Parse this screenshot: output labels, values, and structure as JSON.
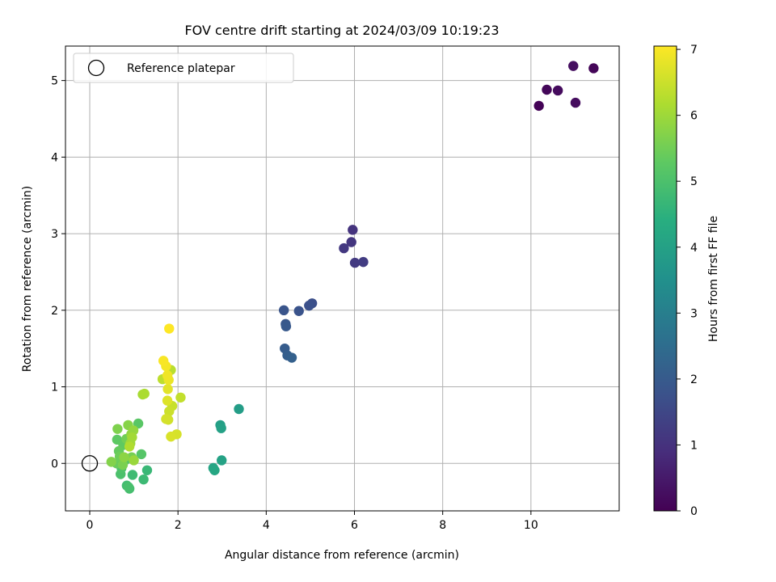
{
  "chart_data": {
    "type": "scatter",
    "title": "FOV centre drift starting at 2024/03/09 10:19:23",
    "xlabel": "Angular distance from reference (arcmin)",
    "ylabel": "Rotation from reference (arcmin)",
    "xlim": [
      -0.55,
      12.0
    ],
    "ylim": [
      -0.62,
      5.45
    ],
    "xticks": [
      "0",
      "2",
      "4",
      "6",
      "8",
      "10"
    ],
    "xtick_values": [
      0,
      2,
      4,
      6,
      8,
      10
    ],
    "yticks": [
      "0",
      "1",
      "2",
      "3",
      "4",
      "5"
    ],
    "ytick_values": [
      0,
      1,
      2,
      3,
      4,
      5
    ],
    "grid": true,
    "legend": {
      "placement": "upper-left",
      "entries": [
        {
          "label": "Reference platepar",
          "marker": "open-circle",
          "x": 0,
          "y": 0
        }
      ]
    },
    "colorbar": {
      "label": "Hours from first FF file",
      "colormap": "viridis",
      "range": [
        0,
        7.05
      ],
      "ticks": [
        "0",
        "1",
        "2",
        "3",
        "4",
        "5",
        "6",
        "7"
      ],
      "tick_values": [
        0,
        1,
        2,
        3,
        4,
        5,
        6,
        7
      ]
    },
    "series": [
      {
        "points": [
          {
            "x": 10.18,
            "y": 4.67,
            "hours": 0.05
          },
          {
            "x": 10.36,
            "y": 4.88,
            "hours": 0.12
          },
          {
            "x": 10.61,
            "y": 4.87,
            "hours": 0.2
          },
          {
            "x": 10.96,
            "y": 5.19,
            "hours": 0.28
          },
          {
            "x": 11.01,
            "y": 4.71,
            "hours": 0.22
          },
          {
            "x": 11.42,
            "y": 5.16,
            "hours": 0.1
          },
          {
            "x": 5.96,
            "y": 3.05,
            "hours": 1.05
          },
          {
            "x": 5.93,
            "y": 2.89,
            "hours": 1.1
          },
          {
            "x": 5.76,
            "y": 2.81,
            "hours": 1.15
          },
          {
            "x": 6.01,
            "y": 2.62,
            "hours": 1.2
          },
          {
            "x": 6.2,
            "y": 2.63,
            "hours": 1.25
          },
          {
            "x": 5.04,
            "y": 2.09,
            "hours": 1.7
          },
          {
            "x": 4.97,
            "y": 2.06,
            "hours": 1.75
          },
          {
            "x": 4.74,
            "y": 1.99,
            "hours": 1.8
          },
          {
            "x": 4.4,
            "y": 2.0,
            "hours": 1.85
          },
          {
            "x": 4.44,
            "y": 1.82,
            "hours": 1.9
          },
          {
            "x": 4.45,
            "y": 1.79,
            "hours": 1.95
          },
          {
            "x": 4.42,
            "y": 1.5,
            "hours": 2.05
          },
          {
            "x": 4.48,
            "y": 1.41,
            "hours": 2.1
          },
          {
            "x": 4.58,
            "y": 1.38,
            "hours": 2.15
          },
          {
            "x": 3.38,
            "y": 0.71,
            "hours": 3.9
          },
          {
            "x": 2.96,
            "y": 0.5,
            "hours": 3.95
          },
          {
            "x": 2.98,
            "y": 0.46,
            "hours": 4.0
          },
          {
            "x": 2.99,
            "y": 0.04,
            "hours": 4.05
          },
          {
            "x": 2.8,
            "y": -0.06,
            "hours": 4.1
          },
          {
            "x": 2.83,
            "y": -0.09,
            "hours": 4.15
          },
          {
            "x": 1.3,
            "y": -0.09,
            "hours": 4.7
          },
          {
            "x": 1.22,
            "y": -0.21,
            "hours": 4.75
          },
          {
            "x": 0.97,
            "y": -0.15,
            "hours": 4.8
          },
          {
            "x": 0.84,
            "y": -0.29,
            "hours": 4.85
          },
          {
            "x": 0.9,
            "y": -0.33,
            "hours": 4.9
          },
          {
            "x": 0.88,
            "y": -0.31,
            "hours": 4.95
          },
          {
            "x": 0.7,
            "y": -0.14,
            "hours": 5.0
          },
          {
            "x": 0.72,
            "y": -0.06,
            "hours": 5.05
          },
          {
            "x": 0.8,
            "y": 0.04,
            "hours": 5.1
          },
          {
            "x": 1.17,
            "y": 0.12,
            "hours": 5.15
          },
          {
            "x": 1.1,
            "y": 0.52,
            "hours": 5.2
          },
          {
            "x": 0.62,
            "y": 0.31,
            "hours": 5.25
          },
          {
            "x": 0.76,
            "y": 0.24,
            "hours": 5.3
          },
          {
            "x": 0.66,
            "y": 0.16,
            "hours": 5.35
          },
          {
            "x": 0.61,
            "y": 0.0,
            "hours": 5.4
          },
          {
            "x": 0.68,
            "y": 0.09,
            "hours": 5.45
          },
          {
            "x": 0.83,
            "y": 0.32,
            "hours": 5.5
          },
          {
            "x": 0.95,
            "y": 0.08,
            "hours": 5.55
          },
          {
            "x": 0.75,
            "y": -0.02,
            "hours": 5.6
          },
          {
            "x": 0.63,
            "y": 0.45,
            "hours": 5.65
          },
          {
            "x": 0.49,
            "y": 0.02,
            "hours": 5.7
          },
          {
            "x": 0.87,
            "y": 0.5,
            "hours": 5.75
          },
          {
            "x": 0.78,
            "y": 0.08,
            "hours": 5.8
          },
          {
            "x": 0.94,
            "y": 0.38,
            "hours": 5.85
          },
          {
            "x": 0.99,
            "y": 0.43,
            "hours": 5.9
          },
          {
            "x": 1.0,
            "y": 0.04,
            "hours": 5.95
          },
          {
            "x": 0.92,
            "y": 0.26,
            "hours": 6.0
          },
          {
            "x": 0.96,
            "y": 0.34,
            "hours": 6.05
          },
          {
            "x": 1.2,
            "y": 0.9,
            "hours": 6.1
          },
          {
            "x": 1.24,
            "y": 0.91,
            "hours": 6.15
          },
          {
            "x": 0.9,
            "y": 0.22,
            "hours": 6.2
          },
          {
            "x": 1.84,
            "y": 1.22,
            "hours": 6.3
          },
          {
            "x": 1.65,
            "y": 1.1,
            "hours": 6.35
          },
          {
            "x": 2.06,
            "y": 0.86,
            "hours": 6.4
          },
          {
            "x": 1.87,
            "y": 0.75,
            "hours": 6.45
          },
          {
            "x": 1.8,
            "y": 0.68,
            "hours": 6.5
          },
          {
            "x": 1.78,
            "y": 0.57,
            "hours": 6.55
          },
          {
            "x": 1.73,
            "y": 0.58,
            "hours": 6.6
          },
          {
            "x": 1.97,
            "y": 0.38,
            "hours": 6.62
          },
          {
            "x": 1.84,
            "y": 0.35,
            "hours": 6.65
          },
          {
            "x": 1.76,
            "y": 0.82,
            "hours": 6.7
          },
          {
            "x": 1.77,
            "y": 0.97,
            "hours": 6.75
          },
          {
            "x": 1.79,
            "y": 1.09,
            "hours": 6.85
          },
          {
            "x": 1.76,
            "y": 1.15,
            "hours": 6.9
          },
          {
            "x": 1.73,
            "y": 1.27,
            "hours": 6.95
          },
          {
            "x": 1.67,
            "y": 1.34,
            "hours": 7.0
          },
          {
            "x": 1.8,
            "y": 1.76,
            "hours": 7.05
          }
        ]
      }
    ]
  }
}
